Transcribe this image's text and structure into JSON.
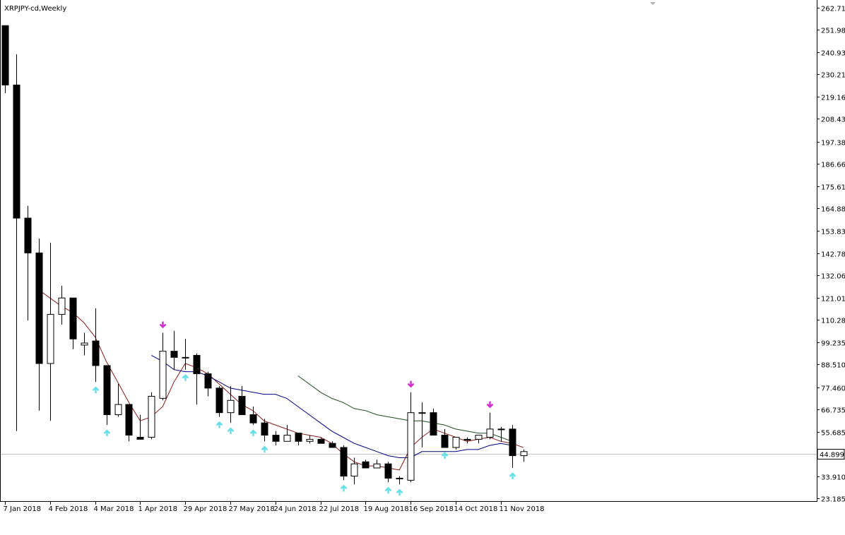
{
  "chart_title": "XRPJPY-cd,Weekly",
  "current_price_label": "44.899",
  "colors": {
    "background": "#ffffff",
    "candle_outline": "#000000",
    "bull_fill": "#ffffff",
    "bear_fill": "#000000",
    "ma_fast": "#8b1a1a",
    "ma_mid": "#000080",
    "ma_slow": "#1f4a1f",
    "fractal_up": "#66e0e8",
    "fractal_down": "#cc33cc",
    "price_line": "#c0c0c0",
    "axis": "#000000"
  },
  "chart_data": {
    "type": "candlestick",
    "title": "XRPJPY-cd,Weekly",
    "ylim": [
      23.185,
      262.71
    ],
    "y_ticks": [
      "262.710",
      "251.985",
      "240.935",
      "230.210",
      "219.160",
      "208.435",
      "197.385",
      "186.660",
      "175.610",
      "164.885",
      "153.835",
      "142.785",
      "132.060",
      "121.010",
      "110.285",
      "99.235",
      "88.510",
      "77.460",
      "66.735",
      "55.685",
      "44.899",
      "33.910",
      "23.185"
    ],
    "x_ticks": [
      "7 Jan 2018",
      "4 Feb 2018",
      "4 Mar 2018",
      "1 Apr 2018",
      "29 Apr 2018",
      "27 May 2018",
      "24 Jun 2018",
      "22 Jul 2018",
      "19 Aug 2018",
      "16 Sep 2018",
      "14 Oct 2018",
      "11 Nov 2018"
    ],
    "current_price": 44.899,
    "candles": [
      {
        "o": 254,
        "h": 254,
        "l": 221,
        "c": 225
      },
      {
        "o": 225,
        "h": 240,
        "l": 56,
        "c": 160
      },
      {
        "o": 160,
        "h": 166,
        "l": 110,
        "c": 143
      },
      {
        "o": 143,
        "h": 150,
        "l": 66,
        "c": 89
      },
      {
        "o": 89,
        "h": 148,
        "l": 61,
        "c": 113
      },
      {
        "o": 113,
        "h": 127,
        "l": 108,
        "c": 121
      },
      {
        "o": 121,
        "h": 121,
        "l": 96,
        "c": 101
      },
      {
        "o": 98,
        "h": 104,
        "l": 93,
        "c": 99
      },
      {
        "o": 100,
        "h": 116,
        "l": 80,
        "c": 88
      },
      {
        "o": 88,
        "h": 88,
        "l": 59,
        "c": 64
      },
      {
        "o": 64,
        "h": 79,
        "l": 63,
        "c": 69
      },
      {
        "o": 69,
        "h": 69,
        "l": 51,
        "c": 54
      },
      {
        "o": 53,
        "h": 64,
        "l": 52,
        "c": 52
      },
      {
        "o": 53,
        "h": 75,
        "l": 52,
        "c": 73
      },
      {
        "o": 72,
        "h": 104,
        "l": 71,
        "c": 95
      },
      {
        "o": 95,
        "h": 105,
        "l": 86,
        "c": 92
      },
      {
        "o": 92,
        "h": 101,
        "l": 86,
        "c": 92
      },
      {
        "o": 93,
        "h": 94,
        "l": 69,
        "c": 84
      },
      {
        "o": 84,
        "h": 85,
        "l": 73,
        "c": 77
      },
      {
        "o": 77,
        "h": 78,
        "l": 63,
        "c": 65
      },
      {
        "o": 65,
        "h": 78,
        "l": 60,
        "c": 71
      },
      {
        "o": 73,
        "h": 78,
        "l": 64,
        "c": 64
      },
      {
        "o": 64,
        "h": 68,
        "l": 59,
        "c": 60
      },
      {
        "o": 60,
        "h": 62,
        "l": 51,
        "c": 54
      },
      {
        "o": 54,
        "h": 56,
        "l": 49,
        "c": 51
      },
      {
        "o": 51,
        "h": 59,
        "l": 51,
        "c": 54
      },
      {
        "o": 55,
        "h": 55,
        "l": 49,
        "c": 51
      },
      {
        "o": 51,
        "h": 54,
        "l": 50,
        "c": 52
      },
      {
        "o": 52,
        "h": 53,
        "l": 50,
        "c": 50
      },
      {
        "o": 50,
        "h": 51,
        "l": 48,
        "c": 48
      },
      {
        "o": 48,
        "h": 49,
        "l": 32,
        "c": 34
      },
      {
        "o": 34,
        "h": 43,
        "l": 30,
        "c": 40
      },
      {
        "o": 41,
        "h": 42,
        "l": 38,
        "c": 38
      },
      {
        "o": 38,
        "h": 42,
        "l": 38,
        "c": 40
      },
      {
        "o": 40,
        "h": 41,
        "l": 31,
        "c": 33
      },
      {
        "o": 33,
        "h": 34,
        "l": 30,
        "c": 33
      },
      {
        "o": 32,
        "h": 75,
        "l": 31,
        "c": 65
      },
      {
        "o": 65,
        "h": 70,
        "l": 48,
        "c": 65
      },
      {
        "o": 65,
        "h": 67,
        "l": 54,
        "c": 54
      },
      {
        "o": 54,
        "h": 57,
        "l": 48,
        "c": 48
      },
      {
        "o": 48,
        "h": 53,
        "l": 47,
        "c": 53
      },
      {
        "o": 52,
        "h": 53,
        "l": 50,
        "c": 52
      },
      {
        "o": 52,
        "h": 54,
        "l": 50,
        "c": 54
      },
      {
        "o": 53,
        "h": 65,
        "l": 52,
        "c": 57
      },
      {
        "o": 57,
        "h": 58,
        "l": 51,
        "c": 57
      },
      {
        "o": 57,
        "h": 59,
        "l": 38,
        "c": 44
      },
      {
        "o": 44,
        "h": 47,
        "l": 41,
        "c": 46
      }
    ],
    "ma_fast": [
      [
        3,
        125
      ],
      [
        5,
        117
      ],
      [
        6,
        114
      ],
      [
        7,
        109
      ],
      [
        8,
        102
      ],
      [
        9,
        90
      ],
      [
        10,
        80
      ],
      [
        11,
        70
      ],
      [
        12,
        61
      ],
      [
        13,
        63
      ],
      [
        14,
        68
      ],
      [
        15,
        80
      ],
      [
        16,
        89
      ],
      [
        17,
        87
      ],
      [
        18,
        84
      ],
      [
        19,
        79
      ],
      [
        20,
        74
      ],
      [
        21,
        69
      ],
      [
        22,
        66
      ],
      [
        23,
        61
      ],
      [
        24,
        59
      ],
      [
        25,
        57
      ],
      [
        26,
        55
      ],
      [
        27,
        54
      ],
      [
        28,
        53
      ],
      [
        29,
        50
      ],
      [
        30,
        45
      ],
      [
        31,
        41
      ],
      [
        32,
        39
      ],
      [
        33,
        39
      ],
      [
        34,
        38
      ],
      [
        35,
        37
      ],
      [
        36,
        48
      ],
      [
        37,
        53
      ],
      [
        38,
        57
      ],
      [
        39,
        55
      ],
      [
        40,
        53
      ],
      [
        41,
        51
      ],
      [
        42,
        52
      ],
      [
        43,
        53
      ],
      [
        44,
        51
      ],
      [
        45,
        50
      ],
      [
        46,
        48
      ]
    ],
    "ma_mid": [
      [
        13,
        93
      ],
      [
        14,
        90
      ],
      [
        15,
        86
      ],
      [
        16,
        85
      ],
      [
        17,
        85
      ],
      [
        18,
        83
      ],
      [
        19,
        80
      ],
      [
        20,
        77
      ],
      [
        21,
        76
      ],
      [
        22,
        75
      ],
      [
        23,
        74
      ],
      [
        24,
        74
      ],
      [
        25,
        72
      ],
      [
        26,
        68
      ],
      [
        27,
        64
      ],
      [
        28,
        60
      ],
      [
        29,
        56
      ],
      [
        30,
        53
      ],
      [
        31,
        50
      ],
      [
        32,
        48
      ],
      [
        33,
        46
      ],
      [
        34,
        44
      ],
      [
        35,
        43
      ],
      [
        36,
        43
      ],
      [
        37,
        46
      ],
      [
        38,
        46
      ],
      [
        39,
        46
      ],
      [
        40,
        46
      ],
      [
        41,
        47
      ],
      [
        42,
        47
      ],
      [
        43,
        49
      ],
      [
        44,
        50
      ],
      [
        45,
        49
      ]
    ],
    "ma_slow": [
      [
        26,
        83
      ],
      [
        27,
        79
      ],
      [
        28,
        75
      ],
      [
        29,
        72
      ],
      [
        30,
        70
      ],
      [
        31,
        67
      ],
      [
        32,
        66
      ],
      [
        33,
        64
      ],
      [
        34,
        63
      ],
      [
        35,
        62
      ],
      [
        36,
        61
      ],
      [
        37,
        61
      ],
      [
        38,
        60
      ],
      [
        39,
        59
      ],
      [
        40,
        57
      ],
      [
        41,
        56
      ],
      [
        42,
        55
      ],
      [
        43,
        55
      ],
      [
        44,
        53
      ],
      [
        45,
        51
      ]
    ],
    "fractals_up": [
      8,
      9,
      16,
      19,
      20,
      22,
      23,
      30,
      34,
      35,
      39,
      45
    ],
    "fractals_down": [
      14,
      36,
      43
    ]
  }
}
